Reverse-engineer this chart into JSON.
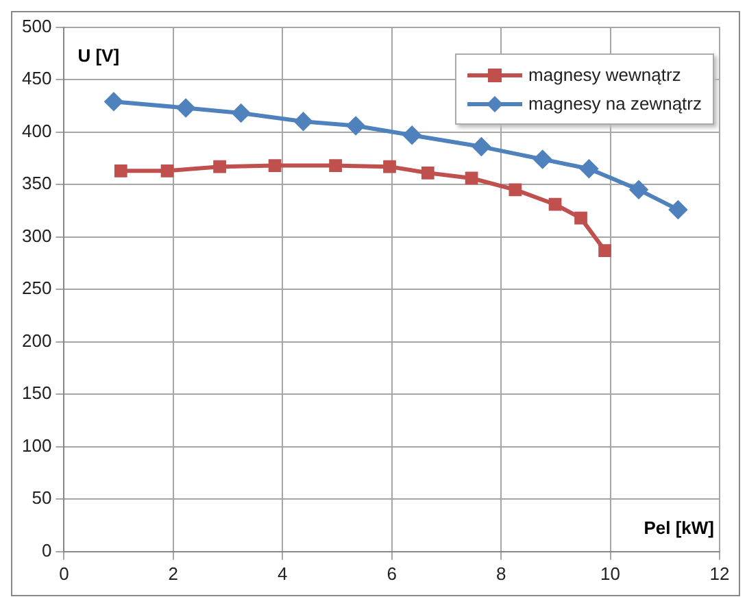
{
  "chart_data": {
    "type": "line",
    "xlabel": "Pel [kW]",
    "ylabel": "U [V]",
    "xlim": [
      0,
      12
    ],
    "xticks": [
      0,
      2,
      4,
      6,
      8,
      10,
      12
    ],
    "ylim": [
      0,
      500
    ],
    "yticks": [
      0,
      50,
      100,
      150,
      200,
      250,
      300,
      350,
      400,
      450,
      500
    ],
    "grid": true,
    "legend": "top right",
    "line_style": "solid",
    "series": [
      {
        "name": "magnesy wewnątrz",
        "color": "#c0504d",
        "marker": "square",
        "x": [
          1.04,
          1.89,
          2.85,
          3.86,
          4.97,
          5.96,
          6.66,
          7.46,
          8.26,
          8.99,
          9.46,
          9.9
        ],
        "values": [
          363,
          363,
          367,
          368,
          368,
          367,
          361,
          356,
          345,
          331,
          318,
          287
        ]
      },
      {
        "name": "magnesy na zewnątrz",
        "color": "#4f81bd",
        "marker": "diamond",
        "x": [
          0.91,
          2.23,
          3.24,
          4.38,
          5.34,
          6.37,
          7.64,
          8.76,
          9.61,
          10.52,
          11.24
        ],
        "values": [
          429,
          423,
          418,
          410,
          406,
          397,
          386,
          374,
          365,
          345,
          326
        ]
      }
    ]
  }
}
